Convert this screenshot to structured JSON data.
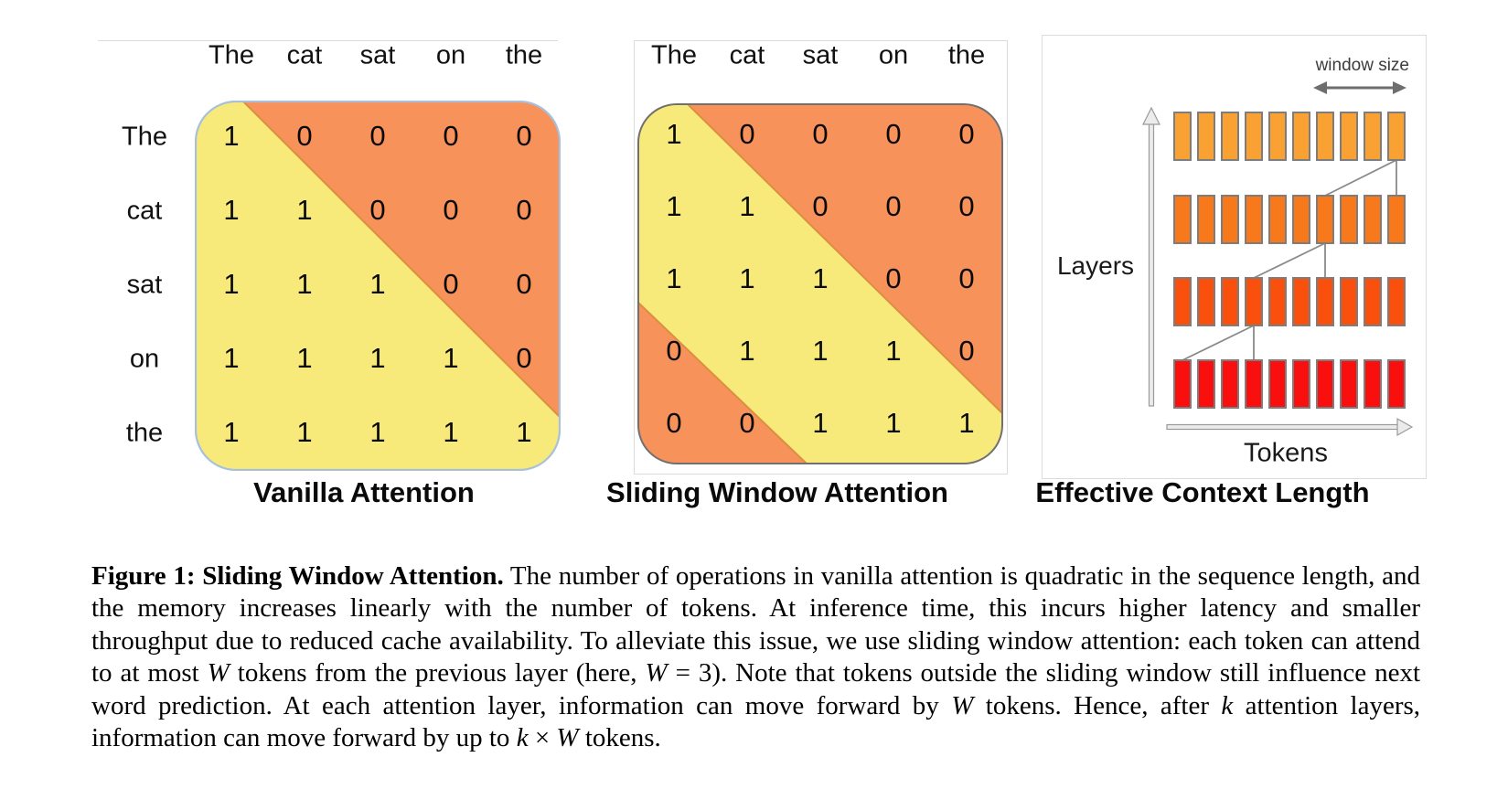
{
  "vanilla_matrix": {
    "title": "Vanilla Attention",
    "col_headers": [
      "The",
      "cat",
      "sat",
      "on",
      "the"
    ],
    "row_headers": [
      "The",
      "cat",
      "sat",
      "on",
      "the"
    ],
    "cells": [
      [
        1,
        0,
        0,
        0,
        0
      ],
      [
        1,
        1,
        0,
        0,
        0
      ],
      [
        1,
        1,
        1,
        0,
        0
      ],
      [
        1,
        1,
        1,
        1,
        0
      ],
      [
        1,
        1,
        1,
        1,
        1
      ]
    ]
  },
  "sliding_matrix": {
    "title": "Sliding Window Attention",
    "col_headers": [
      "The",
      "cat",
      "sat",
      "on",
      "the"
    ],
    "cells": [
      [
        1,
        0,
        0,
        0,
        0
      ],
      [
        1,
        1,
        0,
        0,
        0
      ],
      [
        1,
        1,
        1,
        0,
        0
      ],
      [
        0,
        1,
        1,
        1,
        0
      ],
      [
        0,
        0,
        1,
        1,
        1
      ]
    ]
  },
  "context_panel": {
    "title": "Effective Context Length",
    "window_size_label": "window size",
    "layers_label": "Layers",
    "tokens_label": "Tokens",
    "num_layers": 4,
    "tokens_per_layer": 10,
    "layer_colors": [
      "#F9A233",
      "#F8791B",
      "#F9500E",
      "#FA0F0F"
    ]
  },
  "colors": {
    "attend_yellow": "#F8E97B",
    "masked_orange": "#F7925B",
    "boundary_stroke": "#DB8F3E",
    "vanilla_outline": "#A7C0DC",
    "sliding_outline": "#707070",
    "bar_stroke": "#7D7D7D",
    "connector_gray": "#8A8A8A",
    "arrow_gray": "#9A9A9A"
  },
  "caption": {
    "runs": [
      {
        "t": "Figure 1: Sliding Window Attention.",
        "b": true
      },
      {
        "t": " The number of operations in vanilla attention is quadratic in the sequence length, and the memory increases linearly with the number of tokens. At inference time, this incurs higher latency and smaller throughput due to reduced cache availability. To alleviate this issue, we use sliding window attention: each token can attend to at most "
      },
      {
        "t": "W",
        "i": true
      },
      {
        "t": " tokens from the previous layer (here, "
      },
      {
        "t": "W",
        "i": true
      },
      {
        "t": " = 3). Note that tokens outside the sliding window still influence next word prediction. At each attention layer, information can move forward by "
      },
      {
        "t": "W",
        "i": true
      },
      {
        "t": " tokens. Hence, after "
      },
      {
        "t": "k",
        "i": true
      },
      {
        "t": " attention layers, information can move forward by up to "
      },
      {
        "t": "k",
        "i": true
      },
      {
        "t": " × "
      },
      {
        "t": "W",
        "i": true
      },
      {
        "t": " tokens."
      }
    ]
  }
}
